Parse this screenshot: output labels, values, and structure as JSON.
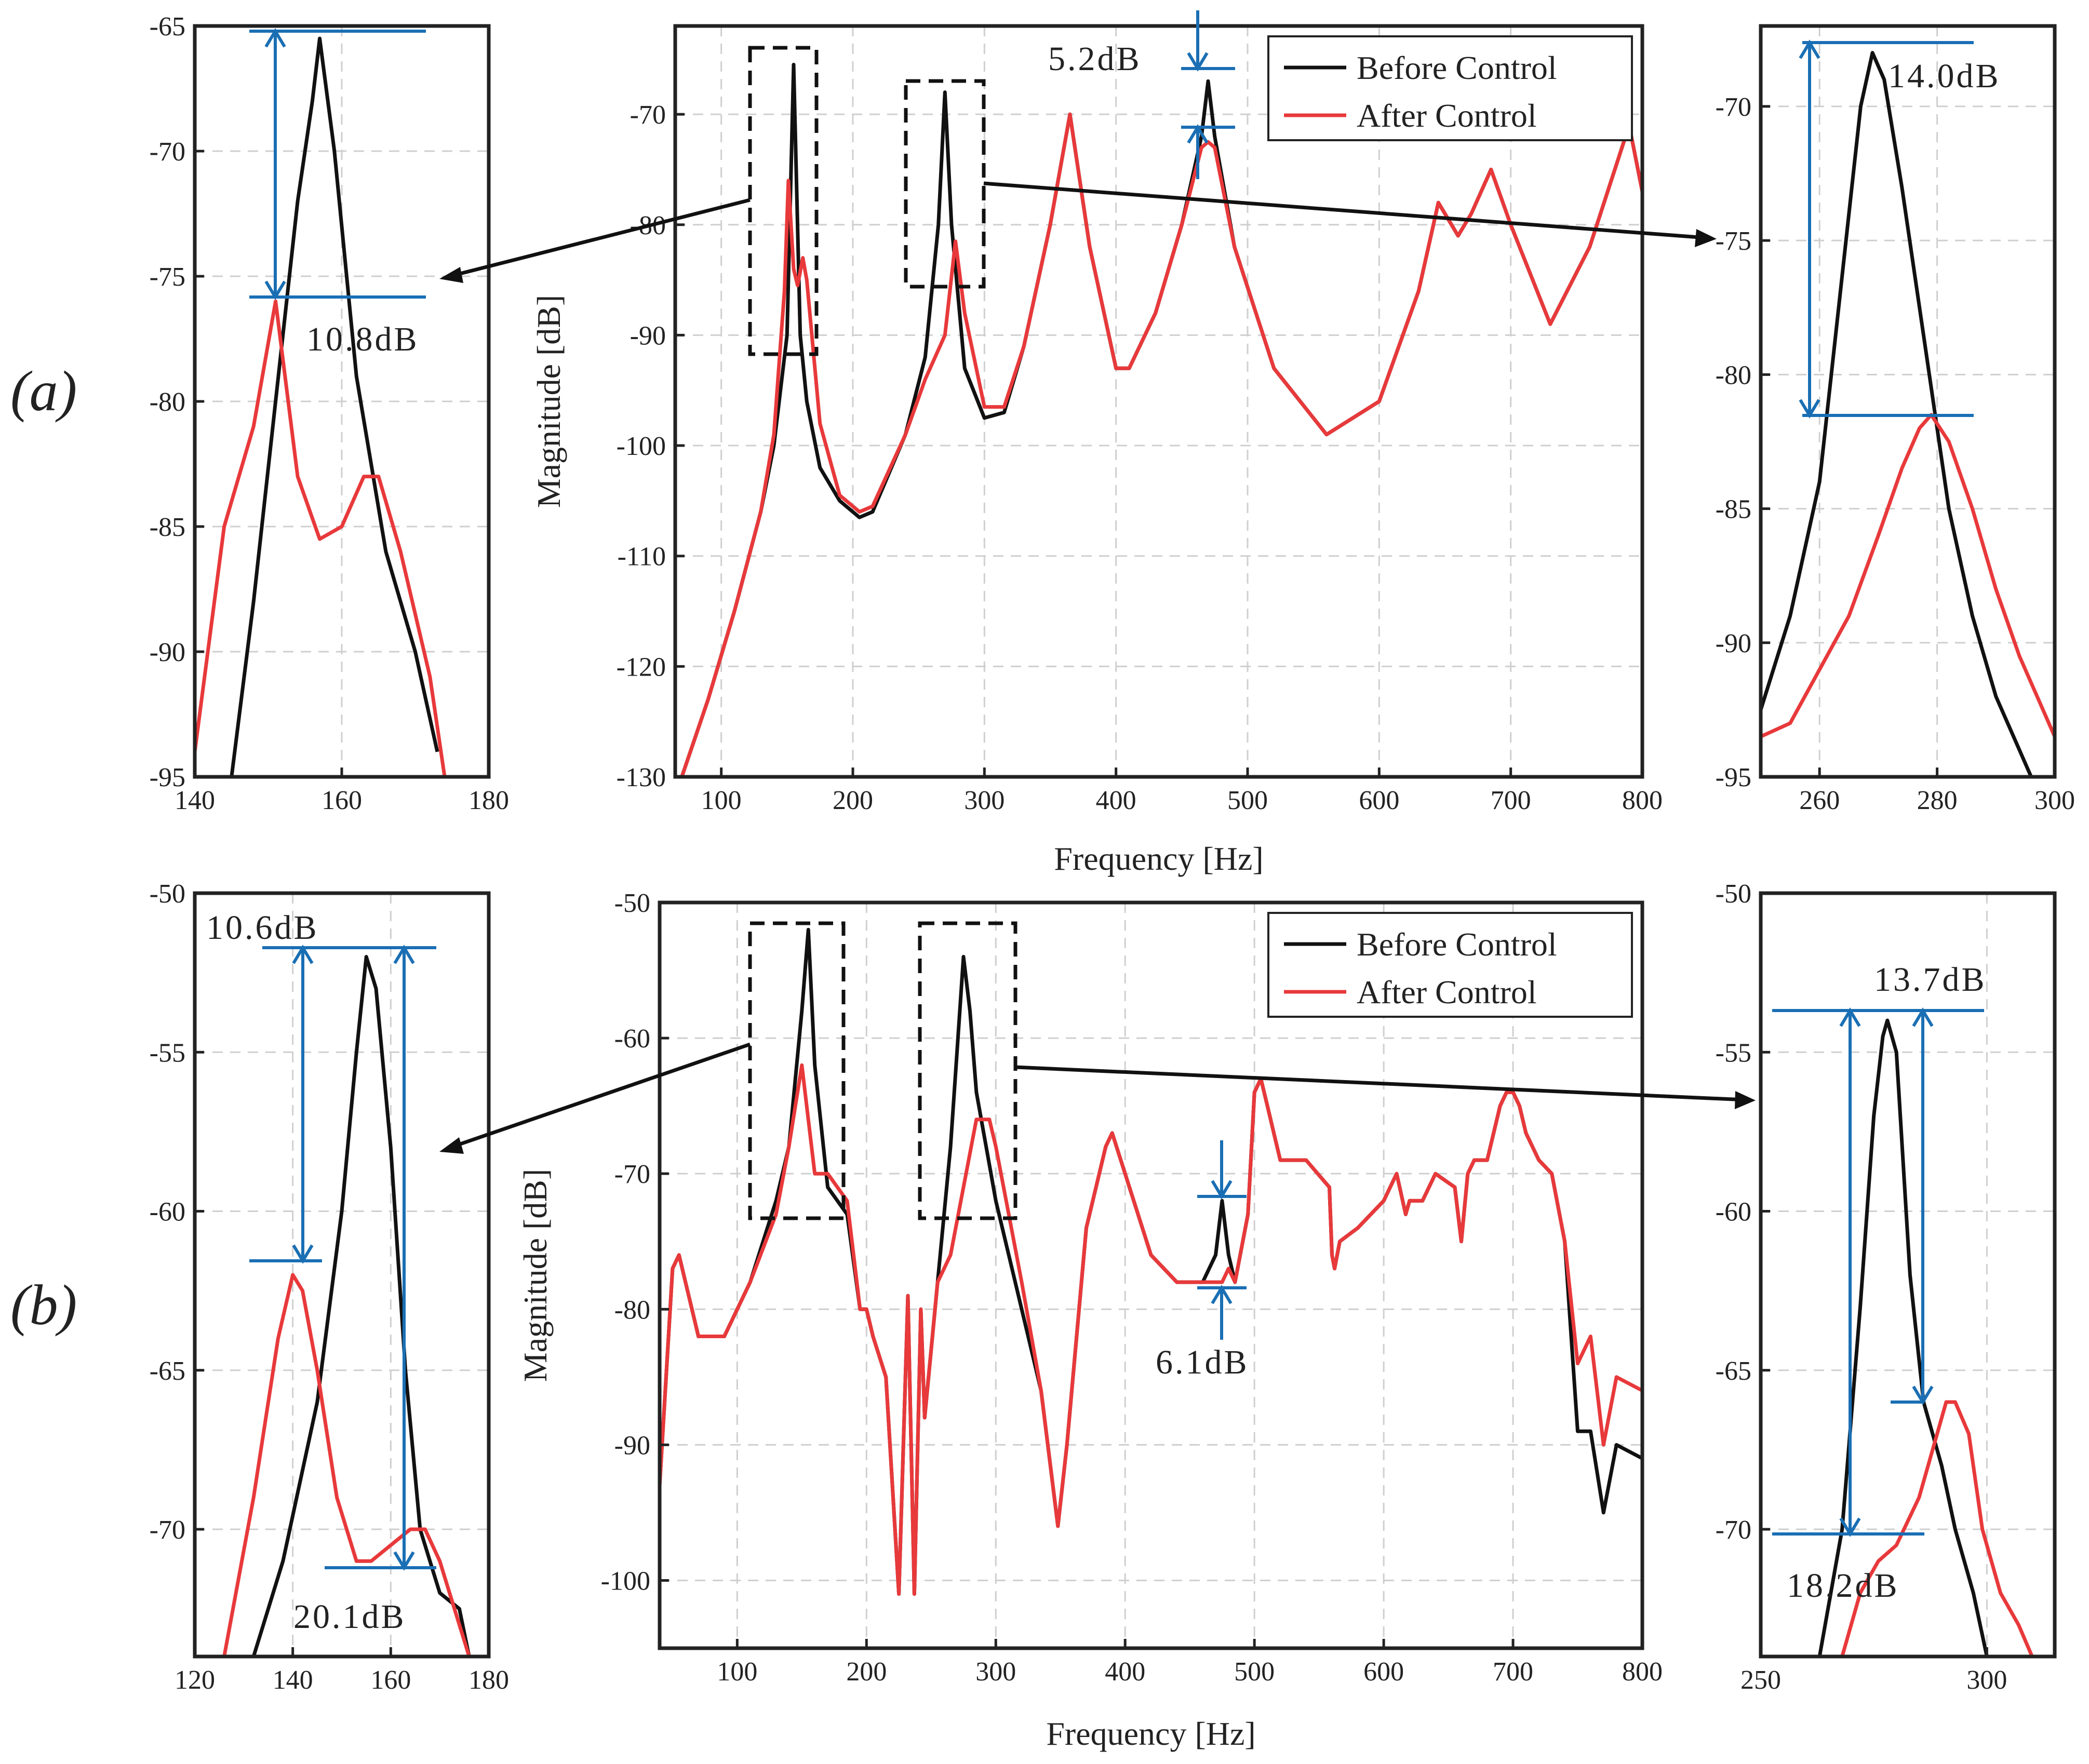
{
  "colors": {
    "before": "#111111",
    "after": "#e8393b",
    "annotation": "#1a6fb4"
  },
  "panel_labels": {
    "a": "(a)",
    "b": "(b)"
  },
  "chart_data": [
    {
      "id": "a-main",
      "type": "line",
      "xlabel": "Frequency [Hz]",
      "ylabel": "Magnitude [dB]",
      "xlim": [
        65,
        800
      ],
      "ylim": [
        -130,
        -62
      ],
      "xticks": [
        100,
        200,
        300,
        400,
        500,
        600,
        700,
        800
      ],
      "yticks": [
        -70,
        -80,
        -90,
        -100,
        -110,
        -120,
        -130
      ],
      "legend": [
        "Before Control",
        "After Control"
      ],
      "legend_position": "top-right",
      "series": [
        {
          "name": "Before Control",
          "x": [
            70,
            90,
            110,
            130,
            140,
            150,
            155,
            160,
            165,
            175,
            190,
            205,
            215,
            240,
            255,
            265,
            270,
            275,
            285,
            300,
            315,
            330,
            350,
            365,
            380,
            400,
            410,
            430,
            450,
            465,
            470,
            475,
            490,
            520,
            560,
            600,
            630,
            645,
            660,
            670,
            685,
            700,
            730,
            760,
            790,
            800
          ],
          "y": [
            -130,
            -123,
            -115,
            -106,
            -100,
            -90,
            -65.5,
            -90,
            -96,
            -102,
            -105,
            -106.5,
            -106,
            -99,
            -92,
            -80,
            -68,
            -80,
            -93,
            -97.5,
            -97,
            -91,
            -80,
            -70,
            -82,
            -93,
            -93,
            -88,
            -80,
            -72,
            -67,
            -72,
            -82,
            -93,
            -99,
            -96,
            -86,
            -78,
            -81,
            -79,
            -75,
            -80,
            -89,
            -82,
            -71,
            -77
          ]
        },
        {
          "name": "After Control",
          "x": [
            70,
            90,
            110,
            130,
            140,
            148,
            151,
            155,
            158,
            162,
            165,
            175,
            190,
            205,
            215,
            240,
            255,
            270,
            278,
            285,
            300,
            315,
            330,
            350,
            365,
            380,
            400,
            410,
            430,
            450,
            465,
            470,
            475,
            490,
            520,
            560,
            600,
            630,
            645,
            660,
            670,
            685,
            700,
            730,
            760,
            790,
            800
          ],
          "y": [
            -130,
            -123,
            -115,
            -106,
            -99,
            -86,
            -76,
            -84,
            -85.5,
            -83,
            -85,
            -98,
            -104.5,
            -106,
            -105.5,
            -99,
            -94,
            -90,
            -81.5,
            -88,
            -96.5,
            -96.5,
            -91,
            -80,
            -70,
            -82,
            -93,
            -93,
            -88,
            -80,
            -73,
            -72.5,
            -73,
            -82,
            -93,
            -99,
            -96,
            -86,
            -78,
            -81,
            -79,
            -75,
            -80,
            -89,
            -82,
            -71,
            -77
          ]
        }
      ],
      "annotations": [
        "5.2dB"
      ]
    },
    {
      "id": "a-zoom-left",
      "type": "line",
      "xlim": [
        140,
        180
      ],
      "ylim": [
        -95,
        -65
      ],
      "xticks": [
        140,
        160,
        180
      ],
      "yticks": [
        -65,
        -70,
        -75,
        -80,
        -85,
        -90,
        -95
      ],
      "series": [
        {
          "name": "Before Control",
          "x": [
            145,
            148,
            151,
            154,
            156,
            157,
            159,
            162,
            166,
            170,
            173
          ],
          "y": [
            -95,
            -88,
            -80,
            -72,
            -68,
            -65.5,
            -70,
            -79,
            -86,
            -90,
            -94
          ]
        },
        {
          "name": "After Control",
          "x": [
            140,
            144,
            148,
            151,
            154,
            157,
            160,
            163,
            165,
            168,
            172,
            174
          ],
          "y": [
            -94,
            -85,
            -81,
            -76,
            -83,
            -85.5,
            -85,
            -83,
            -83,
            -86,
            -91,
            -95
          ]
        }
      ],
      "annotations": [
        "10.8dB"
      ]
    },
    {
      "id": "a-zoom-right",
      "type": "line",
      "xlim": [
        250,
        300
      ],
      "ylim": [
        -95,
        -67
      ],
      "xticks": [
        260,
        280,
        300
      ],
      "yticks": [
        -70,
        -75,
        -80,
        -85,
        -90,
        -95
      ],
      "series": [
        {
          "name": "Before Control",
          "x": [
            250,
            255,
            260,
            264,
            267,
            269,
            271,
            274,
            278,
            282,
            286,
            290,
            294,
            296
          ],
          "y": [
            -92.5,
            -89,
            -84,
            -76,
            -70,
            -68,
            -69,
            -73,
            -79,
            -85,
            -89,
            -92,
            -94,
            -95
          ]
        },
        {
          "name": "After Control",
          "x": [
            250,
            255,
            260,
            265,
            270,
            274,
            277,
            279,
            282,
            286,
            290,
            294,
            298,
            300
          ],
          "y": [
            -93.5,
            -93,
            -91,
            -89,
            -86,
            -83.5,
            -82,
            -81.5,
            -82.5,
            -85,
            -88,
            -90.5,
            -92.5,
            -93.5
          ]
        }
      ],
      "annotations": [
        "14.0dB"
      ]
    },
    {
      "id": "b-main",
      "type": "line",
      "xlabel": "Frequency [Hz]",
      "ylabel": "Magnitude [dB]",
      "xlim": [
        40,
        800
      ],
      "ylim": [
        -105,
        -50
      ],
      "xticks": [
        100,
        200,
        300,
        400,
        500,
        600,
        700,
        800
      ],
      "yticks": [
        -50,
        -60,
        -70,
        -80,
        -90,
        -100
      ],
      "legend": [
        "Before Control",
        "After Control"
      ],
      "legend_position": "top-right",
      "series": [
        {
          "name": "Before Control",
          "x": [
            40,
            50,
            55,
            70,
            90,
            110,
            130,
            140,
            150,
            155,
            160,
            170,
            185,
            195,
            200,
            205,
            215,
            225,
            232,
            237,
            242,
            245,
            255,
            265,
            270,
            275,
            280,
            285,
            300,
            320,
            335,
            348,
            355,
            370,
            385,
            390,
            400,
            420,
            440,
            460,
            470,
            475,
            480,
            485,
            495,
            500,
            505,
            510,
            520,
            540,
            558,
            560,
            562,
            566,
            580,
            600,
            610,
            617,
            620,
            630,
            640,
            655,
            660,
            665,
            670,
            680,
            690,
            695,
            700,
            705,
            710,
            720,
            730,
            740,
            750,
            760,
            770,
            780,
            800
          ],
          "y": [
            -93,
            -77,
            -76,
            -82,
            -82,
            -78,
            -72,
            -68,
            -58,
            -52,
            -62,
            -71,
            -73,
            -80,
            -80,
            -82,
            -85,
            -101,
            -79,
            -101,
            -80,
            -88,
            -78,
            -68,
            -61,
            -54,
            -58,
            -64,
            -72,
            -80,
            -86,
            -96,
            -90,
            -74,
            -68,
            -67,
            -70,
            -76,
            -78,
            -78,
            -76,
            -72,
            -76,
            -78,
            -73,
            -64,
            -63,
            -65,
            -69,
            -69,
            -71,
            -76,
            -77,
            -75,
            -74,
            -72,
            -70,
            -73,
            -72,
            -72,
            -70,
            -71,
            -75,
            -70,
            -69,
            -69,
            -65,
            -64,
            -64,
            -65,
            -67,
            -69,
            -70,
            -75,
            -89,
            -89,
            -95,
            -90,
            -91
          ]
        },
        {
          "name": "After Control",
          "x": [
            40,
            50,
            55,
            70,
            90,
            110,
            130,
            140,
            150,
            160,
            170,
            185,
            195,
            200,
            205,
            215,
            225,
            232,
            237,
            242,
            245,
            255,
            265,
            275,
            285,
            295,
            300,
            320,
            335,
            348,
            355,
            370,
            385,
            390,
            400,
            420,
            440,
            460,
            470,
            475,
            480,
            485,
            495,
            500,
            505,
            510,
            520,
            540,
            558,
            560,
            562,
            566,
            580,
            600,
            610,
            617,
            620,
            630,
            640,
            655,
            660,
            665,
            670,
            680,
            690,
            695,
            700,
            705,
            710,
            720,
            730,
            740,
            750,
            760,
            770,
            780,
            800
          ],
          "y": [
            -93,
            -77,
            -76,
            -82,
            -82,
            -78,
            -73,
            -68,
            -62,
            -70,
            -70,
            -72,
            -80,
            -80,
            -82,
            -85,
            -101,
            -79,
            -101,
            -80,
            -88,
            -78,
            -76,
            -71,
            -66,
            -66,
            -68,
            -78,
            -86,
            -96,
            -90,
            -74,
            -68,
            -67,
            -70,
            -76,
            -78,
            -78,
            -78,
            -78,
            -77,
            -78,
            -73,
            -64,
            -63,
            -65,
            -69,
            -69,
            -71,
            -76,
            -77,
            -75,
            -74,
            -72,
            -70,
            -73,
            -72,
            -72,
            -70,
            -71,
            -75,
            -70,
            -69,
            -69,
            -65,
            -64,
            -64,
            -65,
            -67,
            -69,
            -70,
            -75,
            -84,
            -82,
            -90,
            -85,
            -86
          ]
        }
      ],
      "annotations": [
        "6.1dB"
      ]
    },
    {
      "id": "b-zoom-left",
      "type": "line",
      "xlim": [
        120,
        180
      ],
      "ylim": [
        -74,
        -50
      ],
      "xticks": [
        120,
        140,
        160,
        180
      ],
      "yticks": [
        -50,
        -55,
        -60,
        -65,
        -70
      ],
      "series": [
        {
          "name": "Before Control",
          "x": [
            132,
            138,
            145,
            150,
            153,
            155,
            157,
            160,
            163,
            166,
            170,
            174,
            176
          ],
          "y": [
            -74,
            -71,
            -66,
            -60,
            -55,
            -52,
            -53,
            -58,
            -65,
            -70,
            -72,
            -72.5,
            -74
          ]
        },
        {
          "name": "After Control",
          "x": [
            126,
            132,
            137,
            140,
            142,
            145,
            149,
            153,
            156,
            160,
            164,
            167,
            170,
            172,
            174,
            176
          ],
          "y": [
            -74,
            -69,
            -64,
            -62,
            -62.5,
            -65,
            -69,
            -71,
            -71,
            -70.5,
            -70,
            -70,
            -71,
            -72,
            -73,
            -74
          ]
        }
      ],
      "annotations": [
        "10.6dB",
        "20.1dB"
      ]
    },
    {
      "id": "b-zoom-right",
      "type": "line",
      "xlim": [
        250,
        315
      ],
      "ylim": [
        -74,
        -50
      ],
      "xticks": [
        250,
        300
      ],
      "yticks": [
        -50,
        -55,
        -60,
        -65,
        -70
      ],
      "series": [
        {
          "name": "Before Control",
          "x": [
            263,
            268,
            272,
            275,
            277,
            278,
            280,
            283,
            286,
            290,
            293,
            297,
            300
          ],
          "y": [
            -74,
            -70,
            -63,
            -57,
            -54.5,
            -54,
            -55,
            -62,
            -66,
            -68,
            -70,
            -72,
            -74
          ]
        },
        {
          "name": "After Control",
          "x": [
            268,
            272,
            276,
            280,
            285,
            289,
            291,
            293,
            296,
            299,
            303,
            307,
            310
          ],
          "y": [
            -74,
            -72,
            -71,
            -70.5,
            -69,
            -67,
            -66,
            -66,
            -67,
            -70,
            -72,
            -73,
            -74
          ]
        }
      ],
      "annotations": [
        "13.7dB",
        "18.2dB"
      ]
    }
  ]
}
